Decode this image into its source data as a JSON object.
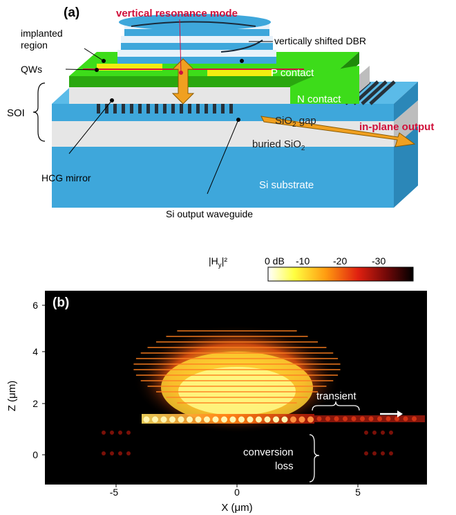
{
  "panel_a": {
    "tag": "(a)",
    "title": "vertical resonance mode",
    "title_color": "#d0103a",
    "labels": {
      "implanted_line1": "implanted",
      "implanted_line2": "region",
      "qws": "QWs",
      "soi": "SOI",
      "dbr": "vertically shifted DBR",
      "p_contact": "P contact",
      "n_contact": "N contact",
      "sio2_gap_main": "SiO",
      "sio2_gap_sub": "2",
      "sio2_gap_tail": " gap",
      "buried_main": "buried SiO",
      "buried_sub": "2",
      "hcg": "HCG mirror",
      "si_substrate": "Si substrate",
      "si_waveguide": "Si output waveguide",
      "in_plane": "in-plane output"
    },
    "colors": {
      "substrate": "#3ea7db",
      "substrate_side": "#2b87b8",
      "oxide": "#e6e6e6",
      "oxide_side": "#bdbdbd",
      "green": "#3ddc1a",
      "green_dark": "#2aa70f",
      "yellow": "#f2ee10",
      "arrow": "#f0a020",
      "red_line": "#d01040"
    }
  },
  "panel_b": {
    "tag": "(b)",
    "colorbar_title_main": "|H",
    "colorbar_title_sub": "y",
    "colorbar_title_tail": "|²",
    "colorbar_ticks": [
      "0 dB",
      "-10",
      "-20",
      "-30"
    ],
    "x_ticks": [
      "-5",
      "0",
      "5"
    ],
    "y_ticks": [
      "0",
      "2",
      "4",
      "6"
    ],
    "xlabel": "X (μm)",
    "ylabel": "Z (μm)",
    "annotation_transient": "transient",
    "annotation_conversion_1": "conversion",
    "annotation_conversion_2": "loss"
  }
}
